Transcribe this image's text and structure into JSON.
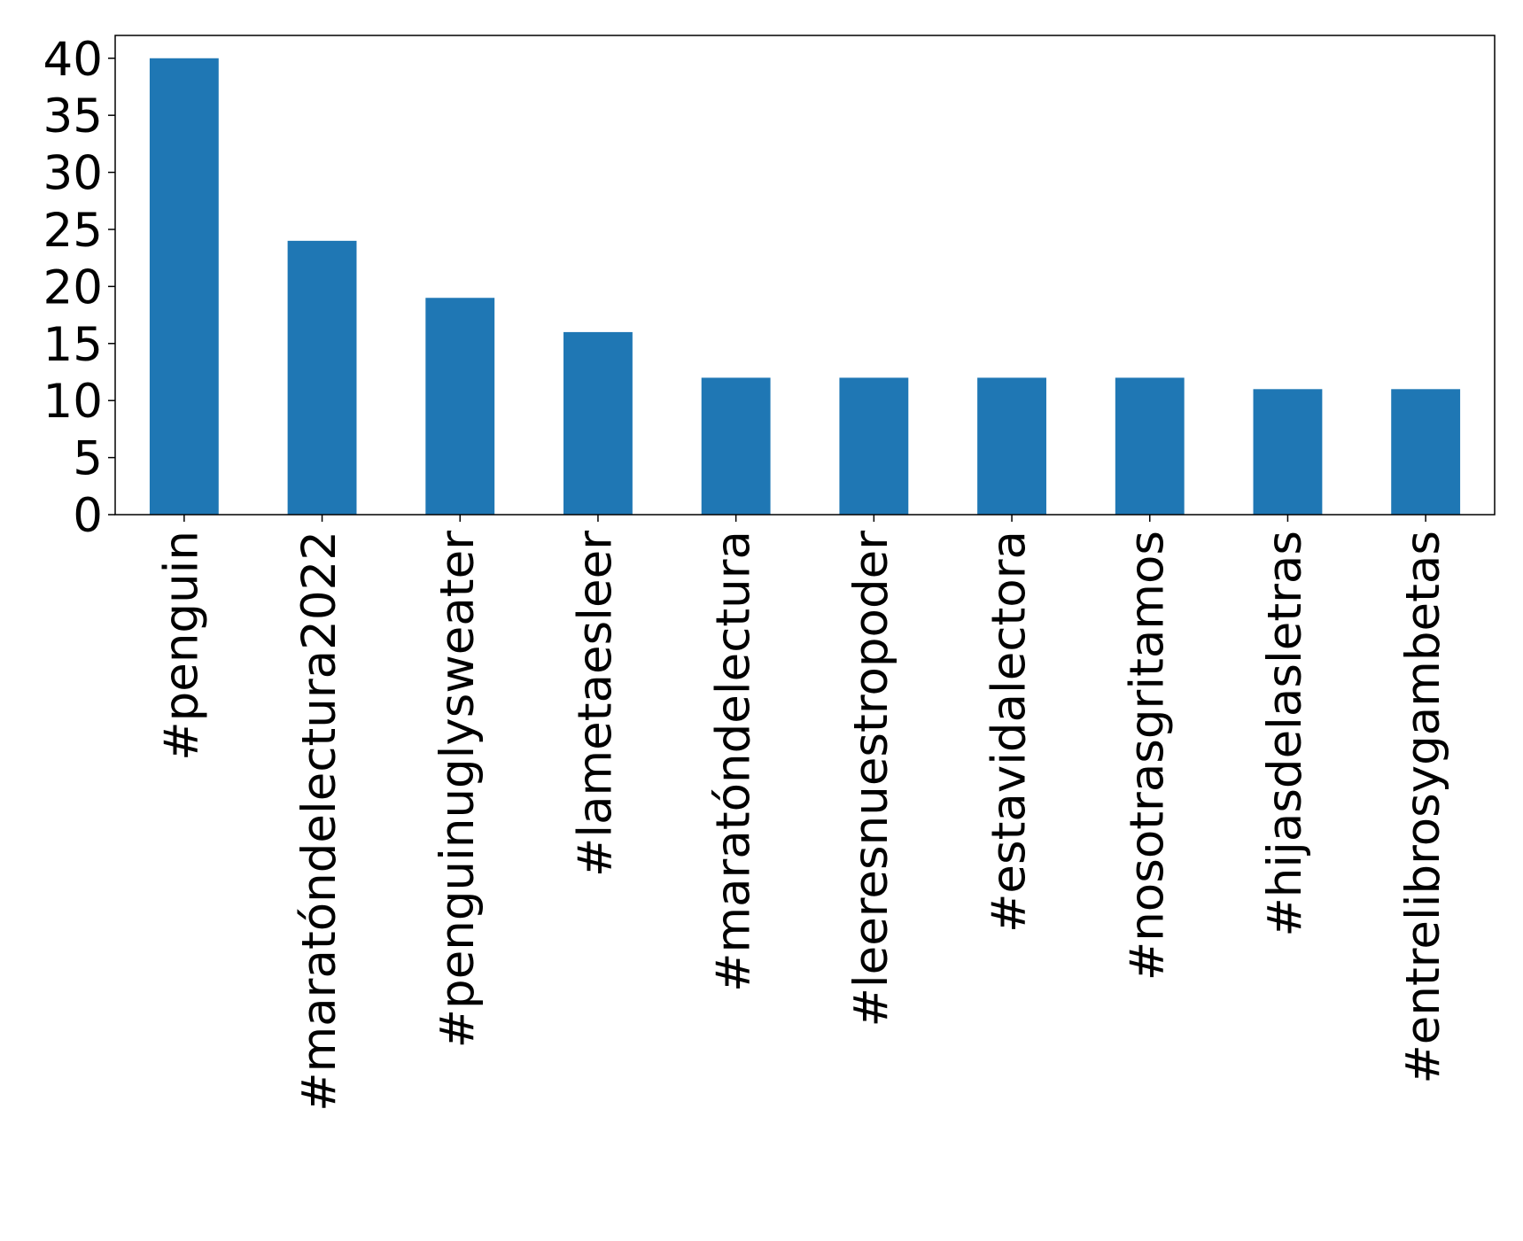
{
  "chart_data": {
    "type": "bar",
    "categories": [
      "#penguin",
      "#maratóndelectura2022",
      "#penguinuglysweater",
      "#lametaesleer",
      "#maratóndelectura",
      "#leeresnuestropoder",
      "#estavidalectora",
      "#nosotrasgritamos",
      "#hijasdelasletras",
      "#entrelibrosygambetas"
    ],
    "values": [
      40,
      24,
      19,
      16,
      12,
      12,
      12,
      12,
      11,
      11
    ],
    "color": "#1f77b4",
    "ylim": [
      0,
      42
    ],
    "yticks": [
      0,
      5,
      10,
      15,
      20,
      25,
      30,
      35,
      40
    ],
    "grid": false
  }
}
